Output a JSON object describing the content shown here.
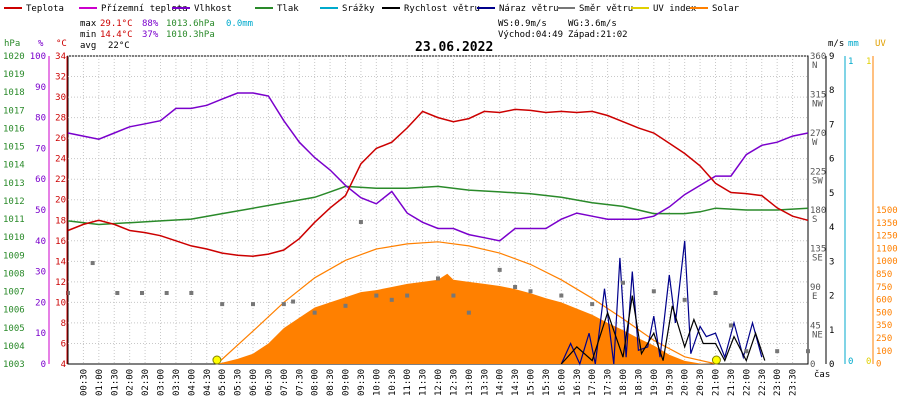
{
  "chart_data": {
    "type": "line",
    "title": "23.06.2022",
    "legend": [
      {
        "label": "Teplota",
        "color": "#cc0000"
      },
      {
        "label": "Přízemní teplota",
        "color": "#cc00cc"
      },
      {
        "label": "Vlhkost",
        "color": "#7a00cc"
      },
      {
        "label": "Tlak",
        "color": "#2a8a2a"
      },
      {
        "label": "Srážky",
        "color": "#00aacc"
      },
      {
        "label": "Rychlost větru",
        "color": "#000000"
      },
      {
        "label": "Náraz větru",
        "color": "#00008b"
      },
      {
        "label": "Směr větru",
        "color": "#777777"
      },
      {
        "label": "UV index",
        "color": "#e0d000"
      },
      {
        "label": "Solar",
        "color": "#ff8000"
      }
    ],
    "stats": {
      "max_label": "max",
      "max_temp": "29.1°C",
      "max_hum": "88%",
      "max_press": "1013.6hPa",
      "max_rain": "0.0mm",
      "min_label": "min",
      "min_temp": "14.4°C",
      "min_hum": "37%",
      "min_press": "1010.3hPa",
      "avg_label": "avg",
      "avg_temp": "22°C"
    },
    "info": {
      "ws": "WS:0.9m/s",
      "wg": "WG:3.6m/s",
      "sunrise": "Východ:04:49",
      "sunset": "Západ:21:02"
    },
    "axes_left": {
      "press_unit": "hPa",
      "press_ticks": [
        "1020",
        "1019",
        "1018",
        "1017",
        "1016",
        "1015",
        "1014",
        "1013",
        "1012",
        "1011",
        "1010",
        "1009",
        "1008",
        "1007",
        "1006",
        "1005",
        "1004",
        "1003"
      ],
      "hum_unit": "%",
      "hum_ticks": [
        "100",
        "90",
        "80",
        "70",
        "60",
        "50",
        "40",
        "30",
        "20",
        "10",
        "0"
      ],
      "temp_unit": "°C",
      "temp_ticks": [
        "34",
        "32",
        "30",
        "28",
        "26",
        "24",
        "22",
        "20",
        "18",
        "16",
        "14",
        "12",
        "10",
        "8",
        "6",
        "4"
      ]
    },
    "axes_right": {
      "dir_ticks": [
        {
          "deg": "360",
          "dir": "N"
        },
        {
          "deg": "315",
          "dir": "NW"
        },
        {
          "deg": "270",
          "dir": "W"
        },
        {
          "deg": "225",
          "dir": "SW"
        },
        {
          "deg": "180",
          "dir": "S"
        },
        {
          "deg": "135",
          "dir": "SE"
        },
        {
          "deg": "90",
          "dir": "E"
        },
        {
          "deg": "45",
          "dir": "NE"
        },
        {
          "deg": "0",
          "dir": ""
        }
      ],
      "wind_unit": "m/s",
      "wind_ticks": [
        "9",
        "8",
        "7",
        "6",
        "5",
        "4",
        "3",
        "2",
        "1",
        "0"
      ],
      "rain_unit": "mm",
      "rain_ticks": [
        "1",
        "0"
      ],
      "uv_unit": "UV",
      "uv_ticks": [
        "1",
        "0"
      ],
      "solar_ticks": [
        "1500",
        "1350",
        "1250",
        "1100",
        "1000",
        "850",
        "750",
        "600",
        "500",
        "350",
        "250",
        "100",
        "0"
      ]
    },
    "x_label": "čas",
    "x_ticks": [
      "00:30",
      "01:00",
      "01:30",
      "02:00",
      "02:30",
      "03:00",
      "03:30",
      "04:00",
      "04:30",
      "05:00",
      "05:30",
      "06:00",
      "06:30",
      "07:00",
      "07:30",
      "08:00",
      "08:30",
      "09:00",
      "09:30",
      "10:00",
      "10:30",
      "11:00",
      "11:30",
      "12:00",
      "12:30",
      "13:00",
      "13:30",
      "14:00",
      "14:30",
      "15:00",
      "15:30",
      "16:00",
      "16:30",
      "17:00",
      "17:30",
      "18:00",
      "18:30",
      "19:00",
      "19:30",
      "20:00",
      "20:30",
      "21:00",
      "21:30",
      "22:00",
      "22:30",
      "23:00",
      "23:30"
    ],
    "series": {
      "temperature": {
        "unit": "°C",
        "points": [
          [
            0,
            17
          ],
          [
            0.5,
            17.6
          ],
          [
            1,
            18
          ],
          [
            1.5,
            17.6
          ],
          [
            2,
            17
          ],
          [
            2.5,
            16.8
          ],
          [
            3,
            16.5
          ],
          [
            3.5,
            16
          ],
          [
            4,
            15.5
          ],
          [
            4.5,
            15.2
          ],
          [
            5,
            14.8
          ],
          [
            5.5,
            14.6
          ],
          [
            6,
            14.5
          ],
          [
            6.5,
            14.7
          ],
          [
            7,
            15.1
          ],
          [
            7.5,
            16.2
          ],
          [
            8,
            17.8
          ],
          [
            8.5,
            19.2
          ],
          [
            9,
            20.4
          ],
          [
            9.5,
            23.5
          ],
          [
            10,
            25
          ],
          [
            10.5,
            25.6
          ],
          [
            11,
            27
          ],
          [
            11.5,
            28.6
          ],
          [
            12,
            28
          ],
          [
            12.5,
            27.6
          ],
          [
            13,
            27.9
          ],
          [
            13.5,
            28.6
          ],
          [
            14,
            28.5
          ],
          [
            14.5,
            28.8
          ],
          [
            15,
            28.7
          ],
          [
            15.5,
            28.5
          ],
          [
            16,
            28.6
          ],
          [
            16.5,
            28.5
          ],
          [
            17,
            28.6
          ],
          [
            17.5,
            28.2
          ],
          [
            18,
            27.6
          ],
          [
            18.5,
            27
          ],
          [
            19,
            26.5
          ],
          [
            19.5,
            25.5
          ],
          [
            20,
            24.5
          ],
          [
            20.5,
            23.3
          ],
          [
            21,
            21.6
          ],
          [
            21.5,
            20.7
          ],
          [
            22,
            20.6
          ],
          [
            22.5,
            20.4
          ],
          [
            23,
            19.2
          ],
          [
            23.5,
            18.4
          ],
          [
            24,
            18
          ]
        ]
      },
      "humidity": {
        "unit": "%",
        "points": [
          [
            0,
            75
          ],
          [
            0.5,
            74
          ],
          [
            1,
            73
          ],
          [
            1.5,
            75
          ],
          [
            2,
            77
          ],
          [
            2.5,
            78
          ],
          [
            3,
            79
          ],
          [
            3.5,
            83
          ],
          [
            4,
            83
          ],
          [
            4.5,
            84
          ],
          [
            5,
            86
          ],
          [
            5.5,
            88
          ],
          [
            6,
            88
          ],
          [
            6.5,
            87
          ],
          [
            7,
            79
          ],
          [
            7.5,
            72
          ],
          [
            8,
            67
          ],
          [
            8.5,
            63
          ],
          [
            9,
            58
          ],
          [
            9.5,
            54
          ],
          [
            10,
            52
          ],
          [
            10.5,
            56
          ],
          [
            11,
            49
          ],
          [
            11.5,
            46
          ],
          [
            12,
            44
          ],
          [
            12.5,
            44
          ],
          [
            13,
            42
          ],
          [
            13.5,
            41
          ],
          [
            14,
            40
          ],
          [
            14.5,
            44
          ],
          [
            15,
            44
          ],
          [
            15.5,
            44
          ],
          [
            16,
            47
          ],
          [
            16.5,
            49
          ],
          [
            17,
            48
          ],
          [
            17.5,
            47
          ],
          [
            18,
            47
          ],
          [
            18.5,
            47
          ],
          [
            19,
            48
          ],
          [
            19.5,
            51
          ],
          [
            20,
            55
          ],
          [
            20.5,
            58
          ],
          [
            21,
            61
          ],
          [
            21.5,
            61
          ],
          [
            22,
            68
          ],
          [
            22.5,
            71
          ],
          [
            23,
            72
          ],
          [
            23.5,
            74
          ],
          [
            24,
            75
          ]
        ]
      },
      "pressure": {
        "unit": "hPa",
        "points": [
          [
            0,
            1010.9
          ],
          [
            1,
            1010.7
          ],
          [
            2,
            1010.8
          ],
          [
            3,
            1010.9
          ],
          [
            4,
            1011
          ],
          [
            5,
            1011.3
          ],
          [
            6,
            1011.6
          ],
          [
            7,
            1011.9
          ],
          [
            8,
            1012.2
          ],
          [
            8.5,
            1012.5
          ],
          [
            9,
            1012.8
          ],
          [
            10,
            1012.7
          ],
          [
            11,
            1012.7
          ],
          [
            12,
            1012.8
          ],
          [
            13,
            1012.6
          ],
          [
            14,
            1012.5
          ],
          [
            15,
            1012.4
          ],
          [
            16,
            1012.2
          ],
          [
            17,
            1011.9
          ],
          [
            18,
            1011.7
          ],
          [
            19,
            1011.3
          ],
          [
            20,
            1011.3
          ],
          [
            20.5,
            1011.4
          ],
          [
            21,
            1011.6
          ],
          [
            22,
            1011.5
          ],
          [
            23,
            1011.5
          ],
          [
            24,
            1011.6
          ]
        ]
      },
      "solar": {
        "unit": "W/m2",
        "points": [
          [
            4.83,
            0
          ],
          [
            5.5,
            50
          ],
          [
            6,
            100
          ],
          [
            6.5,
            200
          ],
          [
            7,
            350
          ],
          [
            7.5,
            450
          ],
          [
            8,
            550
          ],
          [
            8.5,
            600
          ],
          [
            9,
            650
          ],
          [
            9.5,
            700
          ],
          [
            10,
            720
          ],
          [
            10.5,
            750
          ],
          [
            11,
            780
          ],
          [
            11.5,
            800
          ],
          [
            12,
            820
          ],
          [
            12.3,
            880
          ],
          [
            12.5,
            820
          ],
          [
            13,
            800
          ],
          [
            13.5,
            780
          ],
          [
            14,
            760
          ],
          [
            14.5,
            730
          ],
          [
            15,
            690
          ],
          [
            15.5,
            640
          ],
          [
            16,
            600
          ],
          [
            16.5,
            540
          ],
          [
            17,
            480
          ],
          [
            17.5,
            400
          ],
          [
            18,
            330
          ],
          [
            18.5,
            250
          ],
          [
            19,
            180
          ],
          [
            19.5,
            90
          ],
          [
            20,
            30
          ],
          [
            20.5,
            5
          ],
          [
            21,
            0
          ]
        ]
      },
      "solar_theoretical": {
        "unit": "W/m2",
        "points": [
          [
            4.83,
            0
          ],
          [
            6,
            320
          ],
          [
            7,
            600
          ],
          [
            8,
            840
          ],
          [
            9,
            1010
          ],
          [
            10,
            1120
          ],
          [
            11,
            1170
          ],
          [
            12,
            1190
          ],
          [
            13,
            1150
          ],
          [
            14,
            1080
          ],
          [
            15,
            970
          ],
          [
            16,
            820
          ],
          [
            17,
            640
          ],
          [
            18,
            440
          ],
          [
            19,
            230
          ],
          [
            20,
            70
          ],
          [
            21.03,
            0
          ]
        ]
      },
      "wind_direction": {
        "unit": "deg",
        "points": [
          [
            0,
            83
          ],
          [
            0.8,
            118
          ],
          [
            1.6,
            83
          ],
          [
            2.4,
            83
          ],
          [
            3.2,
            83
          ],
          [
            4,
            83
          ],
          [
            5,
            70
          ],
          [
            6,
            70
          ],
          [
            7,
            70
          ],
          [
            7.3,
            73
          ],
          [
            8,
            60
          ],
          [
            9,
            68
          ],
          [
            9.5,
            166
          ],
          [
            10,
            80
          ],
          [
            10.5,
            75
          ],
          [
            11,
            80
          ],
          [
            12,
            100
          ],
          [
            12.5,
            80
          ],
          [
            13,
            60
          ],
          [
            14,
            110
          ],
          [
            14.5,
            90
          ],
          [
            15,
            85
          ],
          [
            16,
            80
          ],
          [
            17,
            70
          ],
          [
            18,
            95
          ],
          [
            19,
            85
          ],
          [
            20,
            75
          ],
          [
            21,
            83
          ],
          [
            21.5,
            45
          ],
          [
            22,
            15
          ],
          [
            23,
            15
          ],
          [
            24,
            15
          ]
        ]
      },
      "wind_gust": {
        "unit": "m/s",
        "points": [
          [
            16,
            0
          ],
          [
            16.3,
            0.6
          ],
          [
            16.6,
            0
          ],
          [
            16.9,
            0.9
          ],
          [
            17.1,
            0
          ],
          [
            17.4,
            2.2
          ],
          [
            17.7,
            0
          ],
          [
            17.9,
            3.1
          ],
          [
            18.1,
            0.2
          ],
          [
            18.3,
            2.7
          ],
          [
            18.5,
            0.4
          ],
          [
            18.8,
            0.5
          ],
          [
            19,
            1.4
          ],
          [
            19.2,
            0.2
          ],
          [
            19.5,
            2.6
          ],
          [
            19.7,
            1.2
          ],
          [
            20,
            3.6
          ],
          [
            20.2,
            0.3
          ],
          [
            20.5,
            1.1
          ],
          [
            20.7,
            0.8
          ],
          [
            21,
            0.9
          ],
          [
            21.3,
            0.2
          ],
          [
            21.6,
            1.2
          ],
          [
            21.9,
            0.2
          ],
          [
            22.2,
            1.2
          ],
          [
            22.5,
            0.2
          ]
        ]
      },
      "wind_speed": {
        "unit": "m/s",
        "points": [
          [
            16,
            0
          ],
          [
            16.5,
            0.5
          ],
          [
            17,
            0.1
          ],
          [
            17.5,
            1.5
          ],
          [
            18,
            0.2
          ],
          [
            18.3,
            2.0
          ],
          [
            18.6,
            0.3
          ],
          [
            19,
            0.9
          ],
          [
            19.3,
            0.1
          ],
          [
            19.6,
            1.7
          ],
          [
            20,
            0.5
          ],
          [
            20.3,
            1.3
          ],
          [
            20.6,
            0.6
          ],
          [
            21,
            0.6
          ],
          [
            21.3,
            0.1
          ],
          [
            21.6,
            0.8
          ],
          [
            22,
            0.1
          ],
          [
            22.3,
            0.9
          ],
          [
            22.6,
            0.1
          ]
        ]
      },
      "uv_markers": {
        "unit": "h",
        "times": [
          4.83,
          21.03
        ]
      }
    },
    "grid": true
  }
}
